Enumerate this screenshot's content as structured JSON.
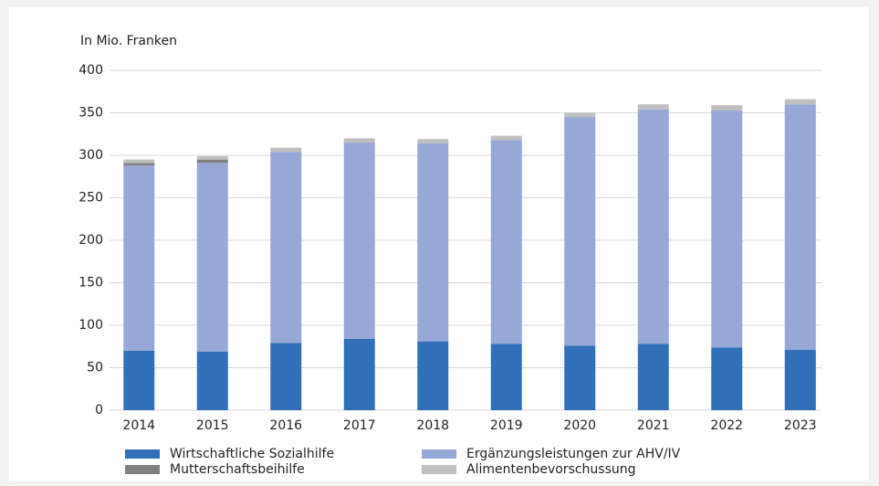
{
  "chart_data": {
    "type": "stacked_bar",
    "y_axis_label": "In Mio. Franken",
    "categories": [
      "2014",
      "2015",
      "2016",
      "2017",
      "2018",
      "2019",
      "2020",
      "2021",
      "2022",
      "2023"
    ],
    "series": [
      {
        "name": "Wirtschaftliche Sozialhilfe",
        "color": "#3170b8",
        "values": [
          70,
          69,
          79,
          84,
          81,
          78,
          76,
          78,
          74,
          71
        ]
      },
      {
        "name": "Ergänzungsleistungen zur AHV/IV",
        "color": "#97a8d7",
        "values": [
          218,
          222,
          225,
          231,
          233,
          240,
          269,
          276,
          279,
          289
        ]
      },
      {
        "name": "Mutterschaftsbeihilfe",
        "color": "#808080",
        "values": [
          3,
          4,
          0,
          0,
          0,
          0,
          0,
          0,
          0,
          0
        ]
      },
      {
        "name": "Alimentenbevorschussung",
        "color": "#bfbfbf",
        "values": [
          4,
          4,
          5,
          5,
          5,
          5,
          5,
          6,
          6,
          6
        ]
      }
    ],
    "ylim": [
      0,
      400
    ],
    "yticks": [
      0,
      50,
      100,
      150,
      200,
      250,
      300,
      350,
      400
    ],
    "grid": true
  }
}
